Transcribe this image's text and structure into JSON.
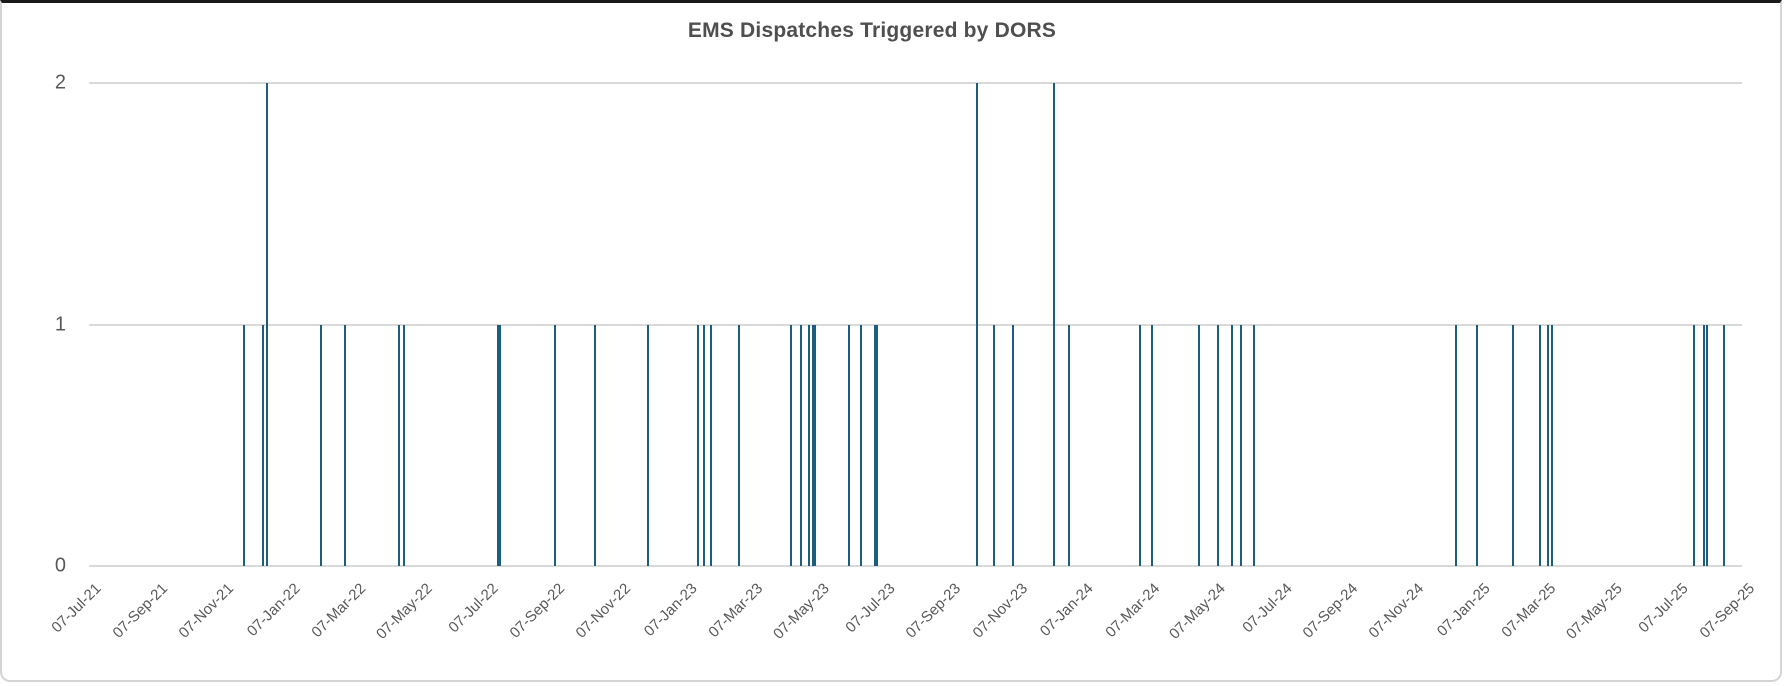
{
  "colors": {
    "bar": "#1d5e7e",
    "gridline": "#d9d9d9",
    "axis_text": "#595959",
    "title_text": "#4f4f4f"
  },
  "chart_data": {
    "type": "bar",
    "title": "EMS Dispatches Triggered by DORS",
    "xlabel": "",
    "ylabel": "",
    "ylim": [
      0,
      2
    ],
    "grid": "horizontal",
    "legend": "none",
    "y_tick_labels": [
      "2",
      "1",
      "0"
    ],
    "x_axis": {
      "start": "2021-07-07",
      "end": "2025-09-07",
      "tick_interval": "2 months",
      "tick_labels": [
        "07-Jul-21",
        "07-Sep-21",
        "07-Nov-21",
        "07-Jan-22",
        "07-Mar-22",
        "07-May-22",
        "07-Jul-22",
        "07-Sep-22",
        "07-Nov-22",
        "07-Jan-23",
        "07-Mar-23",
        "07-May-23",
        "07-Jul-23",
        "07-Sep-23",
        "07-Nov-23",
        "07-Jan-24",
        "07-Mar-24",
        "07-May-24",
        "07-Jul-24",
        "07-Sep-24",
        "07-Nov-24",
        "07-Jan-25",
        "07-Mar-25",
        "07-May-25",
        "07-Jul-25",
        "07-Sep-25"
      ]
    },
    "events": [
      {
        "date": "2021-11-27",
        "value": 1
      },
      {
        "date": "2021-12-14",
        "value": 1
      },
      {
        "date": "2021-12-18",
        "value": 2
      },
      {
        "date": "2022-02-06",
        "value": 1
      },
      {
        "date": "2022-02-28",
        "value": 1
      },
      {
        "date": "2022-04-19",
        "value": 1
      },
      {
        "date": "2022-04-23",
        "value": 1
      },
      {
        "date": "2022-07-19",
        "value": 1
      },
      {
        "date": "2022-07-21",
        "value": 1
      },
      {
        "date": "2022-09-09",
        "value": 1
      },
      {
        "date": "2022-10-16",
        "value": 1
      },
      {
        "date": "2022-12-04",
        "value": 1
      },
      {
        "date": "2023-01-19",
        "value": 1
      },
      {
        "date": "2023-01-25",
        "value": 1
      },
      {
        "date": "2023-01-31",
        "value": 1
      },
      {
        "date": "2023-02-26",
        "value": 1
      },
      {
        "date": "2023-04-15",
        "value": 1
      },
      {
        "date": "2023-04-24",
        "value": 1
      },
      {
        "date": "2023-05-01",
        "value": 1
      },
      {
        "date": "2023-05-05",
        "value": 1
      },
      {
        "date": "2023-05-07",
        "value": 1
      },
      {
        "date": "2023-06-07",
        "value": 1
      },
      {
        "date": "2023-06-18",
        "value": 1
      },
      {
        "date": "2023-07-01",
        "value": 1
      },
      {
        "date": "2023-07-03",
        "value": 1
      },
      {
        "date": "2023-10-03",
        "value": 2
      },
      {
        "date": "2023-10-19",
        "value": 1
      },
      {
        "date": "2023-11-05",
        "value": 1
      },
      {
        "date": "2023-12-13",
        "value": 2
      },
      {
        "date": "2023-12-27",
        "value": 1
      },
      {
        "date": "2024-03-01",
        "value": 1
      },
      {
        "date": "2024-03-12",
        "value": 1
      },
      {
        "date": "2024-04-25",
        "value": 1
      },
      {
        "date": "2024-05-12",
        "value": 1
      },
      {
        "date": "2024-05-25",
        "value": 1
      },
      {
        "date": "2024-06-02",
        "value": 1
      },
      {
        "date": "2024-06-14",
        "value": 1
      },
      {
        "date": "2024-12-17",
        "value": 1
      },
      {
        "date": "2025-01-06",
        "value": 1
      },
      {
        "date": "2025-02-08",
        "value": 1
      },
      {
        "date": "2025-03-05",
        "value": 1
      },
      {
        "date": "2025-03-12",
        "value": 1
      },
      {
        "date": "2025-03-16",
        "value": 1
      },
      {
        "date": "2025-07-25",
        "value": 1
      },
      {
        "date": "2025-08-03",
        "value": 1
      },
      {
        "date": "2025-08-06",
        "value": 1
      },
      {
        "date": "2025-08-21",
        "value": 1
      }
    ]
  }
}
